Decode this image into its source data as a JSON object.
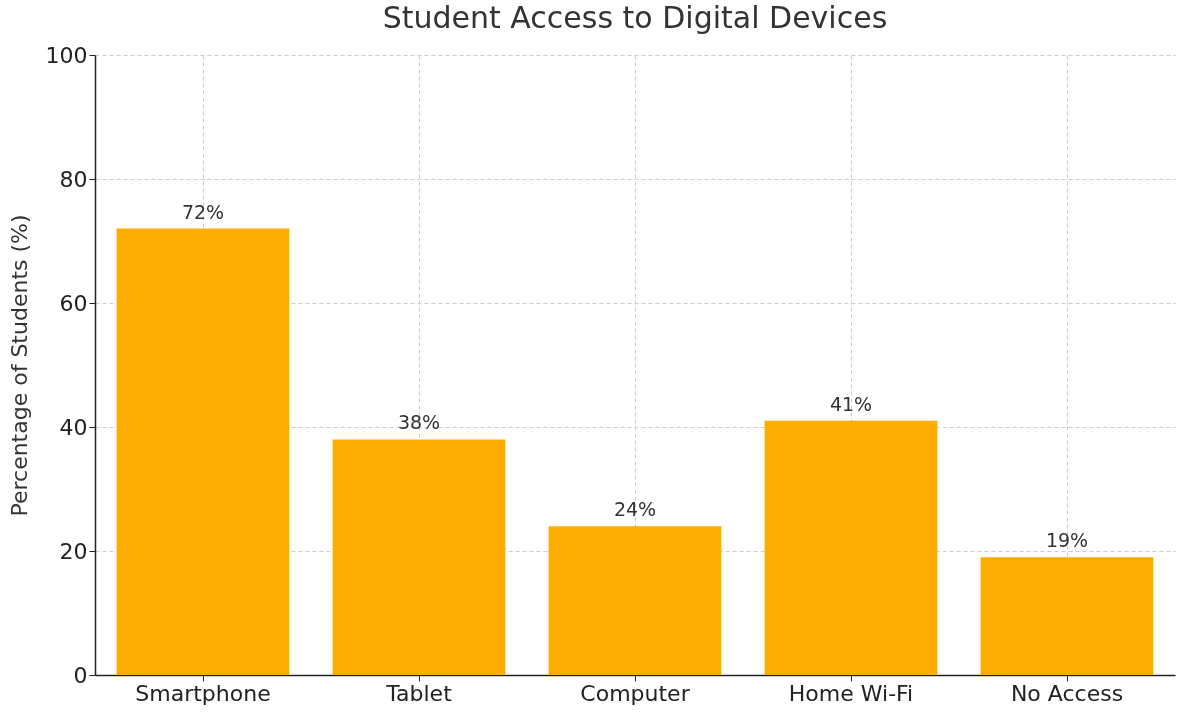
{
  "chart_data": {
    "type": "bar",
    "title": "Student Access to Digital Devices",
    "ylabel": "Percentage of Students (%)",
    "categories": [
      "Smartphone",
      "Tablet",
      "Computer",
      "Home Wi-Fi",
      "No Access"
    ],
    "values": [
      72,
      38,
      24,
      41,
      19
    ],
    "color": "#fcad00",
    "value_labels": [
      "72%",
      "38%",
      "24%",
      "41%",
      "19%"
    ],
    "ylim": [
      0,
      100
    ],
    "yticks": [
      0,
      20,
      40,
      60,
      80,
      100
    ],
    "grid": true
  }
}
